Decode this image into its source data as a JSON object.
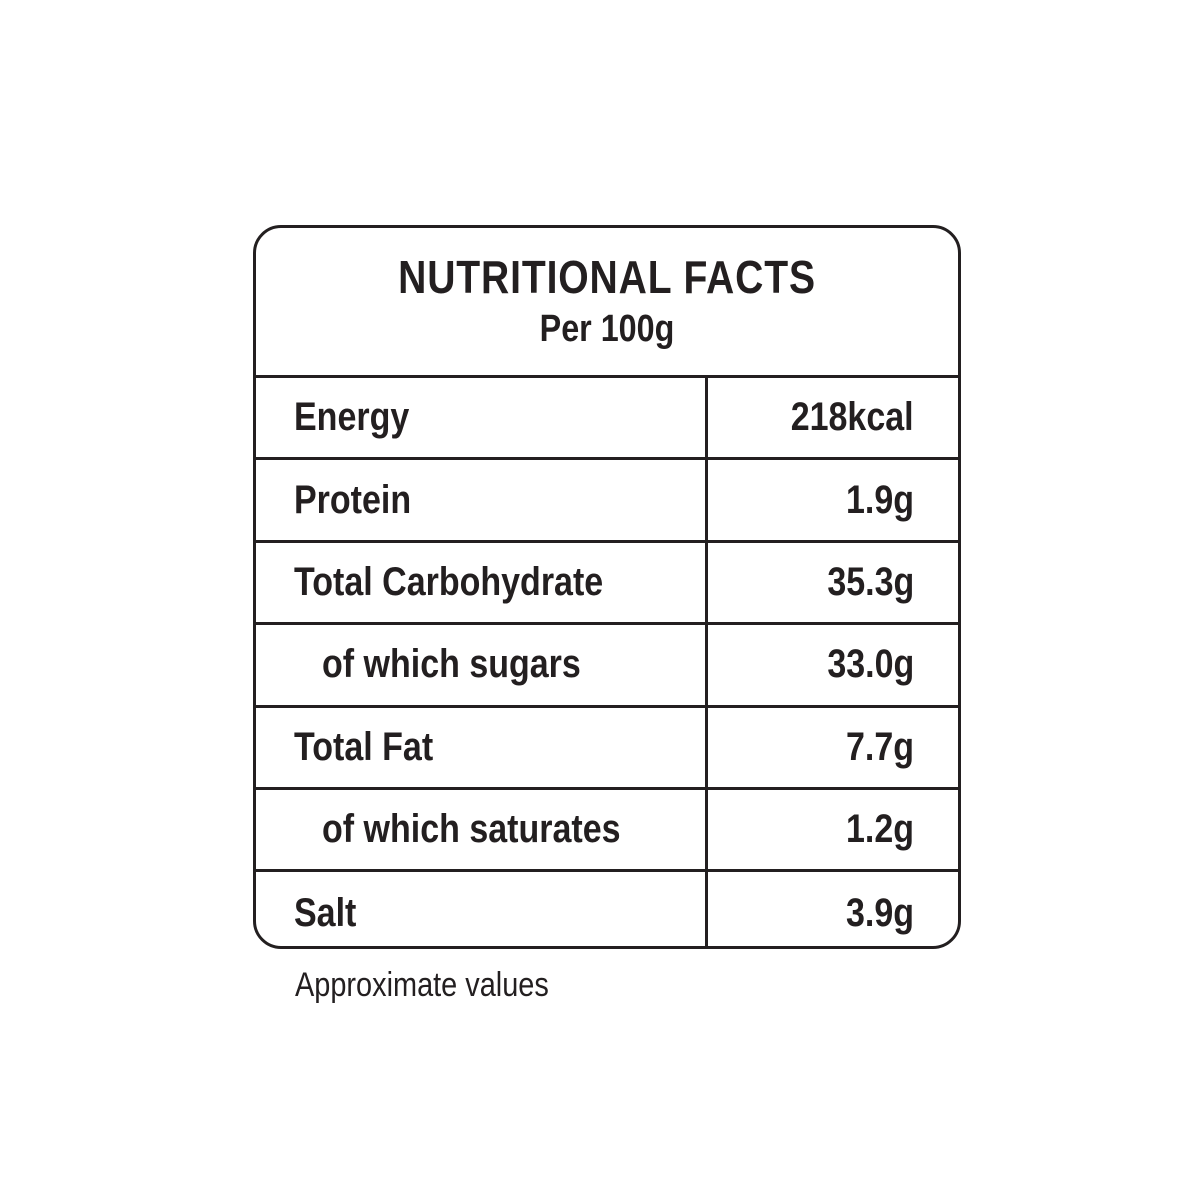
{
  "header": {
    "title": "NUTRITIONAL FACTS",
    "subtitle": "Per 100g"
  },
  "table": {
    "rows": [
      [
        "Energy",
        "218kcal"
      ],
      [
        "Protein",
        "1.9g"
      ],
      [
        "Total Carbohydrate",
        "35.3g"
      ],
      [
        "of which sugars",
        "33.0g"
      ],
      [
        "Total Fat",
        "7.7g"
      ],
      [
        "of which saturates",
        "1.2g"
      ],
      [
        "Salt",
        "3.9g"
      ]
    ]
  },
  "footnote": "Approximate values"
}
